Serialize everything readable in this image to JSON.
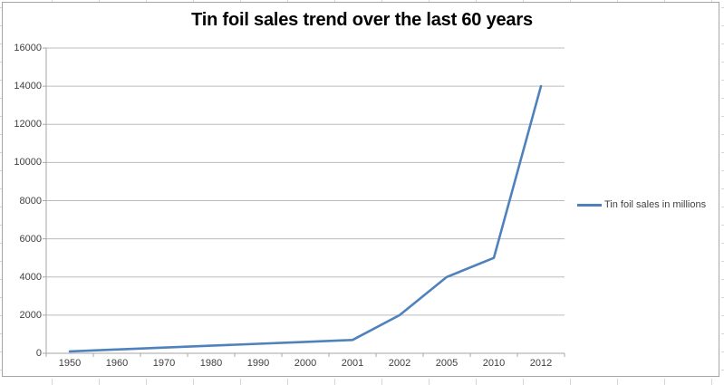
{
  "chart_data": {
    "type": "line",
    "title": "Tin foil sales trend over the last 60 years",
    "categories": [
      "1950",
      "1960",
      "1970",
      "1980",
      "1990",
      "2000",
      "2001",
      "2002",
      "2005",
      "2010",
      "2012"
    ],
    "series": [
      {
        "name": "Tin foil sales in millions",
        "color": "#4F81BD",
        "values": [
          100,
          200,
          300,
          400,
          500,
          600,
          700,
          2000,
          4000,
          5000,
          14000
        ]
      }
    ],
    "xlabel": "",
    "ylabel": "",
    "ylim": [
      0,
      16000
    ],
    "ytick_step": 2000,
    "grid": true,
    "legend_position": "right"
  },
  "colors": {
    "series_line": "#4F81BD",
    "gridline": "#bcbcbc",
    "axis": "#a6a6a6",
    "tick_label": "#404040",
    "title": "#000000",
    "chart_border": "#a6a6a6",
    "cell_gridline": "#d6d6d6",
    "background": "#ffffff"
  }
}
